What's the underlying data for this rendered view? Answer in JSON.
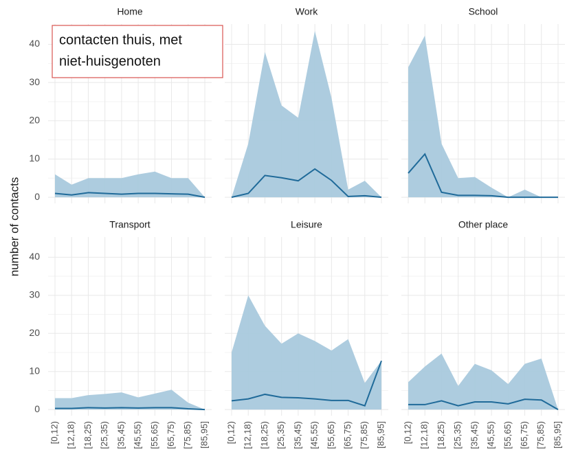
{
  "y_label": "number of contacts",
  "annotation": [
    "contacten thuis, met",
    "niet-huisgenoten"
  ],
  "chart_data": [
    {
      "type": "ribbon-line",
      "title": "Home",
      "categories": [
        "[0,12)",
        "[12,18)",
        "[18,25)",
        "[25,35)",
        "[35,45)",
        "[45,55)",
        "[55,65)",
        "[65,75)",
        "[75,85)",
        "[85,95]"
      ],
      "band": [
        6,
        3.3,
        5,
        5,
        5,
        6,
        6.7,
        5,
        5,
        0
      ],
      "values": [
        1,
        0.6,
        1.2,
        1,
        0.8,
        1,
        1,
        0.9,
        0.8,
        0
      ],
      "band_color": "#a9c9dd",
      "color": "#1f6a99",
      "ylim": [
        -1.6,
        45.3
      ],
      "yticks": [
        0,
        10,
        20,
        30,
        40
      ],
      "grid": true
    },
    {
      "type": "ribbon-line",
      "title": "Work",
      "categories": [
        "[0,12)",
        "[12,18)",
        "[18,25)",
        "[25,35)",
        "[35,45)",
        "[45,55)",
        "[55,65)",
        "[65,75)",
        "[75,85)",
        "[85,95]"
      ],
      "band": [
        0,
        14,
        38,
        24,
        20.8,
        43.5,
        26,
        2,
        4.3,
        0
      ],
      "values": [
        0,
        1,
        5.7,
        5.1,
        4.3,
        7.4,
        4.4,
        0.2,
        0.4,
        0
      ],
      "band_color": "#a9c9dd",
      "color": "#1f6a99",
      "ylim": [
        -1.6,
        45.3
      ],
      "yticks": [
        0,
        10,
        20,
        30,
        40
      ],
      "grid": true
    },
    {
      "type": "ribbon-line",
      "title": "School",
      "categories": [
        "[0,12)",
        "[12,18)",
        "[18,25)",
        "[25,35)",
        "[35,45)",
        "[45,55)",
        "[55,65)",
        "[65,75)",
        "[75,85)",
        "[85,95]"
      ],
      "band": [
        34,
        42.3,
        14,
        5,
        5.3,
        2.5,
        0,
        2,
        0,
        0
      ],
      "values": [
        6.3,
        11.3,
        1.3,
        0.5,
        0.5,
        0.4,
        0,
        0,
        0,
        0
      ],
      "band_color": "#a9c9dd",
      "color": "#1f6a99",
      "ylim": [
        -1.6,
        45.3
      ],
      "yticks": [
        0,
        10,
        20,
        30,
        40
      ],
      "grid": true
    },
    {
      "type": "ribbon-line",
      "title": "Transport",
      "categories": [
        "[0,12)",
        "[12,18)",
        "[18,25)",
        "[25,35)",
        "[35,45)",
        "[45,55)",
        "[55,65)",
        "[65,75)",
        "[75,85)",
        "[85,95]"
      ],
      "band": [
        3,
        3,
        3.8,
        4.1,
        4.5,
        3.2,
        4.2,
        5.2,
        1.8,
        0
      ],
      "values": [
        0.3,
        0.3,
        0.5,
        0.4,
        0.5,
        0.4,
        0.5,
        0.5,
        0.2,
        0
      ],
      "band_color": "#a9c9dd",
      "color": "#1f6a99",
      "ylim": [
        -1.6,
        45.3
      ],
      "yticks": [
        0,
        10,
        20,
        30,
        40
      ],
      "grid": true
    },
    {
      "type": "ribbon-line",
      "title": "Leisure",
      "categories": [
        "[0,12)",
        "[12,18)",
        "[18,25)",
        "[25,35)",
        "[35,45)",
        "[45,55)",
        "[55,65)",
        "[65,75)",
        "[75,85)",
        "[85,95]"
      ],
      "band": [
        15,
        30,
        22,
        17.3,
        20,
        18,
        15.5,
        18.5,
        7,
        12.8
      ],
      "values": [
        2.3,
        2.8,
        4,
        3.2,
        3.1,
        2.8,
        2.4,
        2.4,
        1,
        12.8
      ],
      "band_color": "#a9c9dd",
      "color": "#1f6a99",
      "ylim": [
        -1.6,
        45.3
      ],
      "yticks": [
        0,
        10,
        20,
        30,
        40
      ],
      "grid": true
    },
    {
      "type": "ribbon-line",
      "title": "Other place",
      "categories": [
        "[0,12)",
        "[12,18)",
        "[18,25)",
        "[25,35)",
        "[35,45)",
        "[45,55)",
        "[55,65)",
        "[65,75)",
        "[75,85)",
        "[85,95]"
      ],
      "band": [
        7.2,
        11.3,
        14.7,
        6.2,
        12,
        10.3,
        6.7,
        12,
        13.4,
        0
      ],
      "values": [
        1.3,
        1.3,
        2.3,
        1,
        2,
        2,
        1.5,
        2.7,
        2.5,
        0
      ],
      "band_color": "#a9c9dd",
      "color": "#1f6a99",
      "ylim": [
        -1.6,
        45.3
      ],
      "yticks": [
        0,
        10,
        20,
        30,
        40
      ],
      "grid": true
    }
  ]
}
